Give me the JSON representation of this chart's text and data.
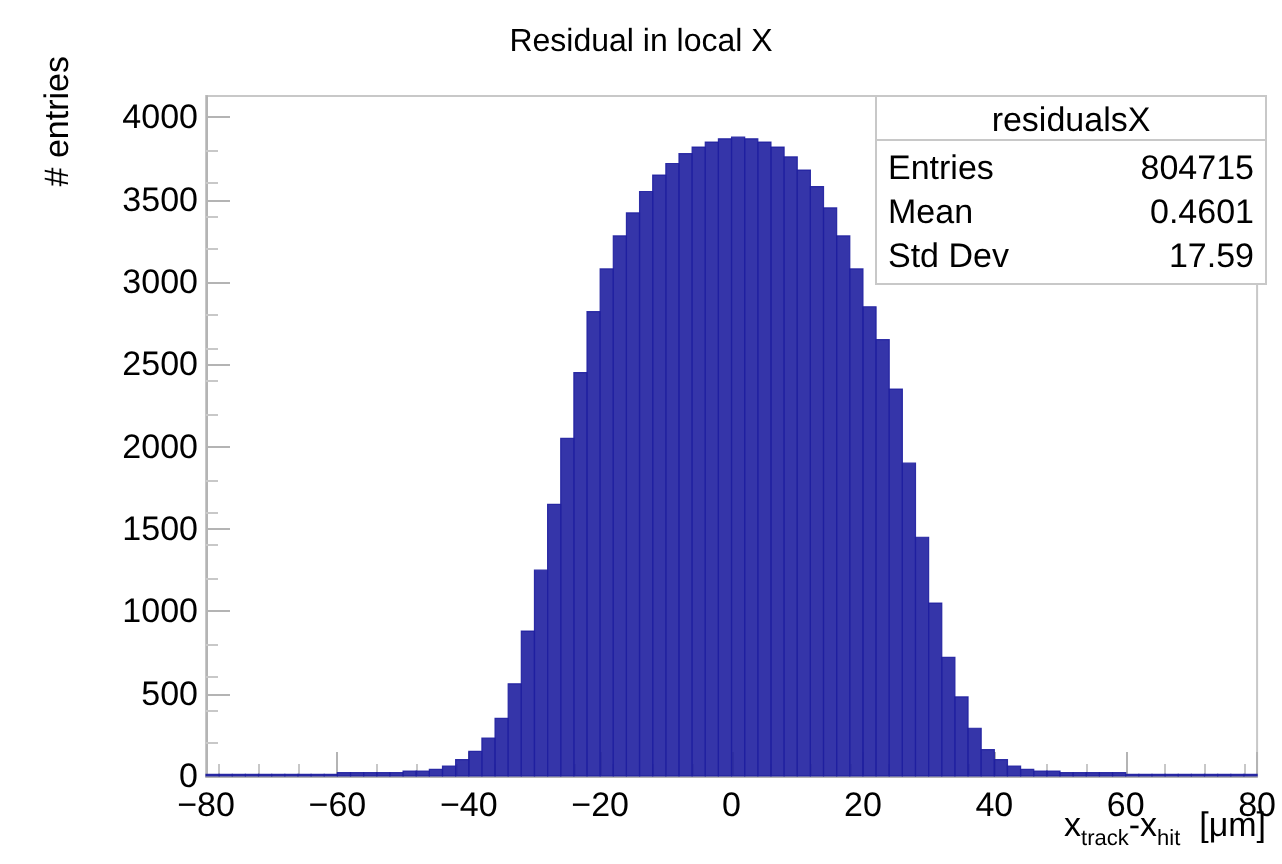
{
  "chart_data": {
    "type": "histogram",
    "title": "Residual in local X",
    "xlabel": "x$_{track}$-x$_{hit}$  [μm]",
    "ylabel": "# entries",
    "bins": [
      -80,
      -78,
      -76,
      -74,
      -72,
      -70,
      -68,
      -66,
      -64,
      -62,
      -60,
      -58,
      -56,
      -54,
      -52,
      -50,
      -48,
      -46,
      -44,
      -42,
      -40,
      -38,
      -36,
      -34,
      -32,
      -30,
      -28,
      -26,
      -24,
      -22,
      -20,
      -18,
      -16,
      -14,
      -12,
      -10,
      -8,
      -6,
      -4,
      -2,
      0,
      2,
      4,
      6,
      8,
      10,
      12,
      14,
      16,
      18,
      20,
      22,
      24,
      26,
      28,
      30,
      32,
      34,
      36,
      38,
      40,
      42,
      44,
      46,
      48,
      50,
      52,
      54,
      56,
      58,
      60,
      62,
      64,
      66,
      68,
      70,
      72,
      74,
      76,
      78,
      80
    ],
    "values": [
      10,
      10,
      10,
      10,
      10,
      10,
      10,
      10,
      10,
      10,
      20,
      20,
      20,
      20,
      20,
      30,
      30,
      40,
      60,
      100,
      150,
      230,
      350,
      560,
      880,
      1250,
      1650,
      2050,
      2450,
      2820,
      3080,
      3280,
      3420,
      3550,
      3650,
      3720,
      3780,
      3820,
      3850,
      3870,
      3880,
      3870,
      3850,
      3820,
      3760,
      3680,
      3580,
      3450,
      3280,
      3080,
      2850,
      2650,
      2350,
      1900,
      1450,
      1050,
      720,
      480,
      290,
      160,
      100,
      60,
      40,
      30,
      30,
      20,
      20,
      20,
      20,
      20,
      10,
      10,
      10,
      10,
      10,
      10,
      10,
      10,
      10,
      10
    ],
    "color": "#1f1fa0",
    "xlim": [
      -80,
      80
    ],
    "xticks": [
      -80,
      -60,
      -40,
      -20,
      0,
      20,
      40,
      60,
      80
    ],
    "ylim": [
      0,
      4130
    ],
    "yticks": [
      0,
      500,
      1000,
      1500,
      2000,
      2500,
      3000,
      3500,
      4000
    ],
    "grid": false,
    "annotations": [
      "residualsX",
      "Entries",
      "804715",
      "Mean",
      "0.4601",
      "Std Dev",
      "17.59"
    ]
  }
}
